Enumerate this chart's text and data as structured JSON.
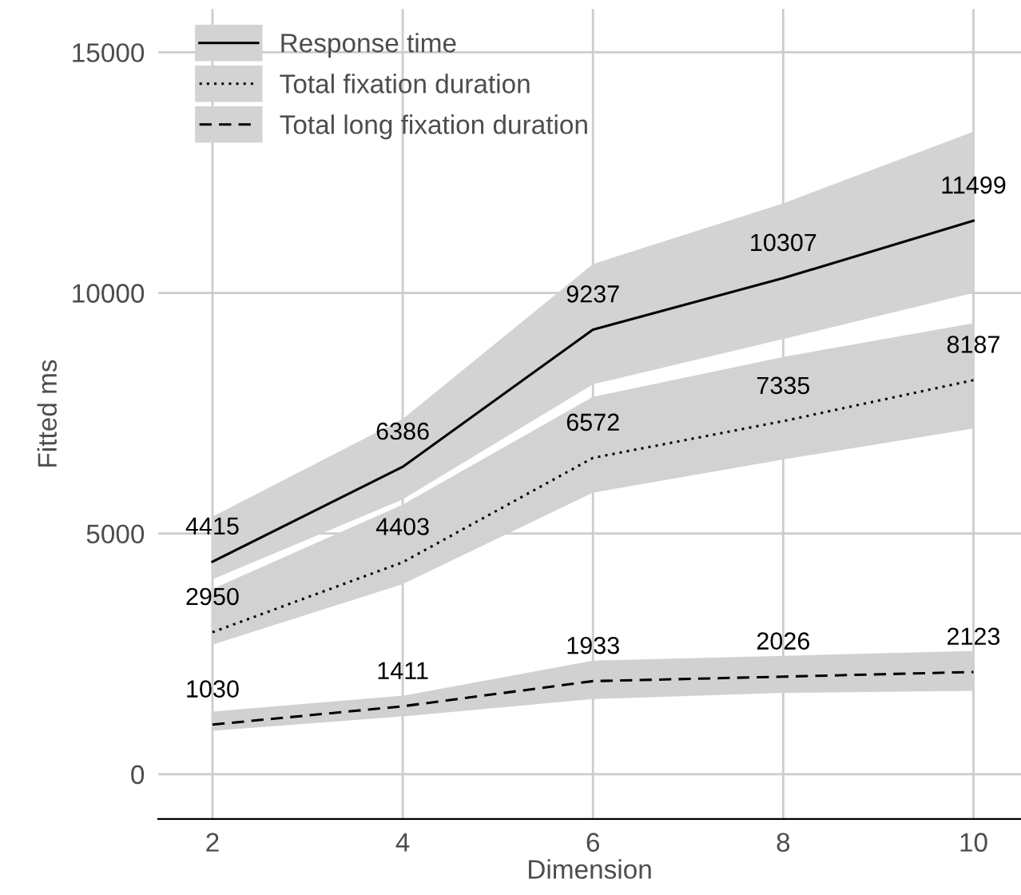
{
  "chart_data": {
    "type": "line",
    "xlabel": "Dimension",
    "ylabel": "Fitted ms",
    "x": [
      2,
      4,
      6,
      8,
      10
    ],
    "series": [
      {
        "name": "Response time",
        "color": "#000000",
        "line_style": "solid",
        "values": [
          4415,
          6386,
          9237,
          10307,
          11499
        ],
        "lower": [
          4050,
          5710,
          8100,
          9040,
          10000
        ],
        "upper": [
          5350,
          7380,
          10600,
          11860,
          13350
        ]
      },
      {
        "name": "Total fixation duration",
        "color": "#000000",
        "line_style": "dotted",
        "values": [
          2950,
          4403,
          6572,
          7335,
          8187
        ],
        "lower": [
          2690,
          3950,
          5850,
          6540,
          7180
        ],
        "upper": [
          3850,
          5600,
          7840,
          8670,
          9370
        ]
      },
      {
        "name": "Total long fixation duration",
        "color": "#000000",
        "line_style": "dashed",
        "values": [
          1030,
          1411,
          1933,
          2026,
          2123
        ],
        "lower": [
          900,
          1200,
          1560,
          1690,
          1730
        ],
        "upper": [
          1300,
          1630,
          2360,
          2460,
          2560
        ]
      }
    ],
    "xlim": [
      1.43,
      10.5
    ],
    "ylim": [
      -930,
      15900
    ],
    "xticks": [
      2,
      4,
      6,
      8,
      10
    ],
    "yticks": [
      0,
      5000,
      10000,
      15000
    ],
    "grid": true,
    "legend": "top left",
    "data_labels": true,
    "marker": "none"
  }
}
